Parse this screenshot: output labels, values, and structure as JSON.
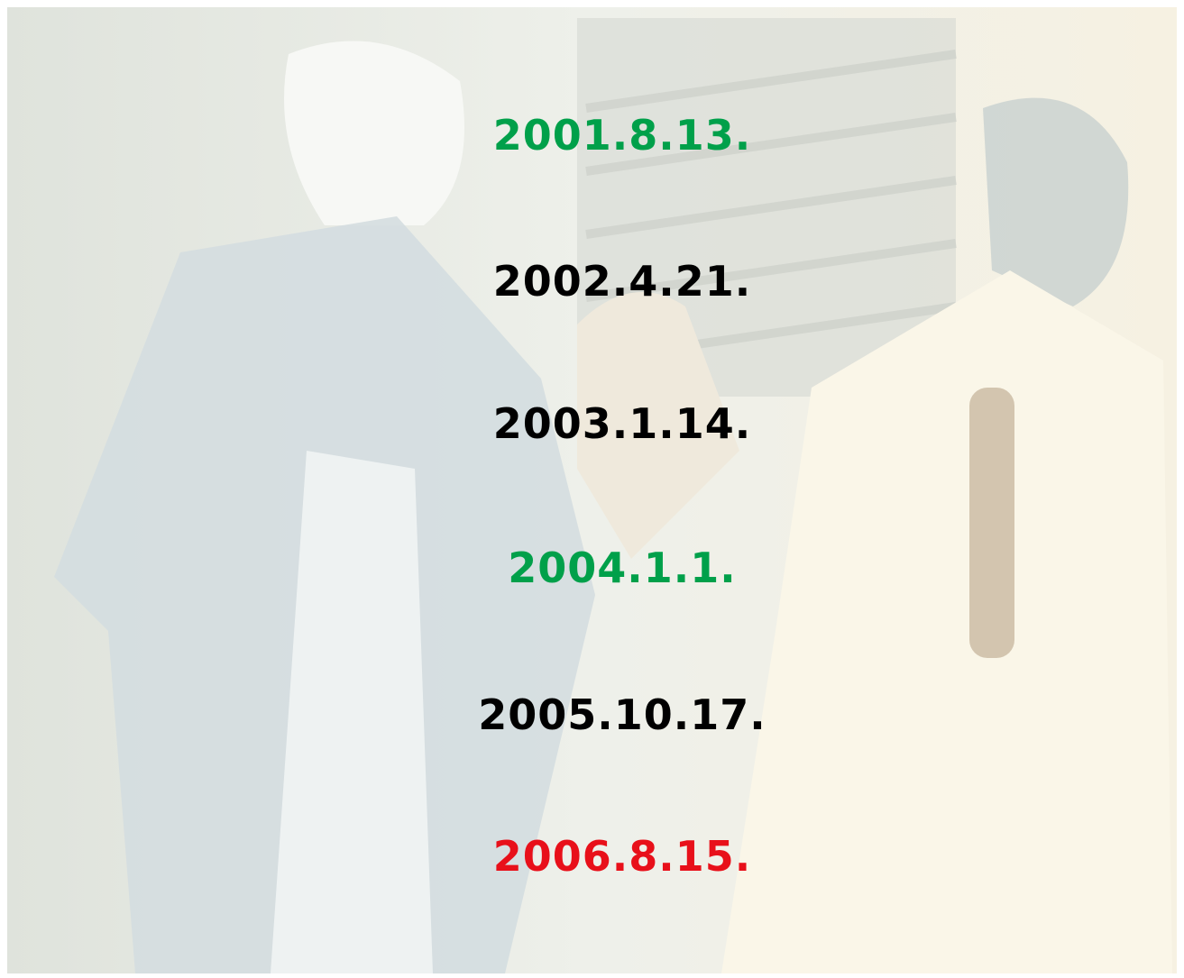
{
  "dates": [
    {
      "text": "2001.8.13.",
      "color": "#00a04a"
    },
    {
      "text": "2002.4.21.",
      "color": "#000000"
    },
    {
      "text": "2003.1.14.",
      "color": "#000000"
    },
    {
      "text": "2004.1.1.",
      "color": "#00a04a"
    },
    {
      "text": "2005.10.17.",
      "color": "#000000"
    },
    {
      "text": "2006.8.15.",
      "color": "#e8101a"
    }
  ]
}
